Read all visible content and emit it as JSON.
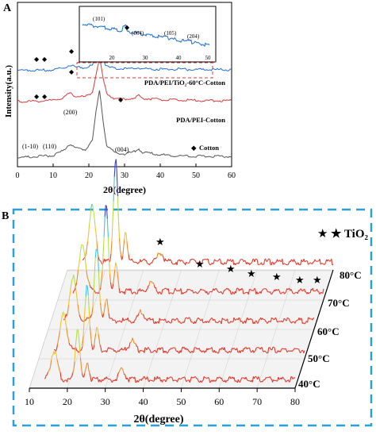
{
  "chart_data": [
    {
      "panel_label": "A",
      "type": "line",
      "xlabel": "2θ(degree)",
      "ylabel": "Intensity(a.u.)",
      "xlim": [
        0,
        60
      ],
      "xticks": [
        0,
        10,
        20,
        30,
        40,
        50,
        60
      ],
      "grid": false,
      "series": [
        {
          "name": "PDA/PEI/TiO₂-60°C-Cotton",
          "color": "#1f6fd6",
          "points": [
            [
              0,
              0.3
            ],
            [
              5,
              0.32
            ],
            [
              10,
              0.35
            ],
            [
              13,
              0.55
            ],
            [
              14,
              0.7
            ],
            [
              15,
              0.8
            ],
            [
              16,
              0.62
            ],
            [
              17,
              0.6
            ],
            [
              19,
              0.55
            ],
            [
              21,
              0.8
            ],
            [
              22,
              1.3
            ],
            [
              23,
              1.9
            ],
            [
              24,
              1.2
            ],
            [
              25,
              0.65
            ],
            [
              27,
              0.5
            ],
            [
              30,
              0.45
            ],
            [
              33,
              0.5
            ],
            [
              34,
              0.55
            ],
            [
              35,
              0.45
            ],
            [
              40,
              0.42
            ],
            [
              45,
              0.4
            ],
            [
              50,
              0.38
            ],
            [
              55,
              0.38
            ],
            [
              60,
              0.37
            ]
          ]
        },
        {
          "name": "PDA/PEI-Cotton",
          "color": "#d63b3b",
          "points": [
            [
              0,
              0.3
            ],
            [
              5,
              0.33
            ],
            [
              10,
              0.38
            ],
            [
              13,
              0.6
            ],
            [
              14,
              0.8
            ],
            [
              15,
              0.95
            ],
            [
              16,
              0.72
            ],
            [
              17,
              0.7
            ],
            [
              19,
              0.65
            ],
            [
              21,
              1.0
            ],
            [
              22,
              2.3
            ],
            [
              23,
              3.6
            ],
            [
              24,
              2.0
            ],
            [
              25,
              0.9
            ],
            [
              27,
              0.55
            ],
            [
              30,
              0.48
            ],
            [
              33,
              0.55
            ],
            [
              34,
              0.75
            ],
            [
              35,
              0.55
            ],
            [
              40,
              0.44
            ],
            [
              45,
              0.4
            ],
            [
              50,
              0.38
            ],
            [
              55,
              0.37
            ],
            [
              60,
              0.36
            ]
          ]
        },
        {
          "name": "Cotton",
          "color": "#555555",
          "points": [
            [
              0,
              0.3
            ],
            [
              5,
              0.34
            ],
            [
              10,
              0.42
            ],
            [
              13,
              0.7
            ],
            [
              14,
              0.95
            ],
            [
              15,
              1.05
            ],
            [
              16,
              0.85
            ],
            [
              17,
              0.82
            ],
            [
              19,
              0.75
            ],
            [
              21,
              1.3
            ],
            [
              22,
              2.9
            ],
            [
              23,
              4.2
            ],
            [
              24,
              2.4
            ],
            [
              25,
              1.0
            ],
            [
              27,
              0.6
            ],
            [
              30,
              0.5
            ],
            [
              33,
              0.65
            ],
            [
              34,
              0.8
            ],
            [
              35,
              0.6
            ],
            [
              40,
              0.45
            ],
            [
              45,
              0.4
            ],
            [
              50,
              0.38
            ],
            [
              55,
              0.37
            ],
            [
              60,
              0.36
            ]
          ]
        }
      ],
      "peak_labels": [
        "(1-10)",
        "(110)",
        "(200)",
        "(004)"
      ],
      "legend_marker_label": "Cotton",
      "inset": {
        "xticks": [
          20,
          30,
          40,
          50
        ],
        "peak_labels": [
          "(101)",
          "(004)",
          "(105)",
          "(204)"
        ]
      }
    },
    {
      "panel_label": "B",
      "type": "line",
      "xlabel": "2θ(degree)",
      "xlim": [
        10,
        80
      ],
      "xticks": [
        10,
        20,
        30,
        40,
        50,
        60,
        70,
        80
      ],
      "legend": "★ TiO₂",
      "series_labels": [
        "80°C",
        "70°C",
        "60°C",
        "50°C",
        "40°C"
      ]
    }
  ]
}
